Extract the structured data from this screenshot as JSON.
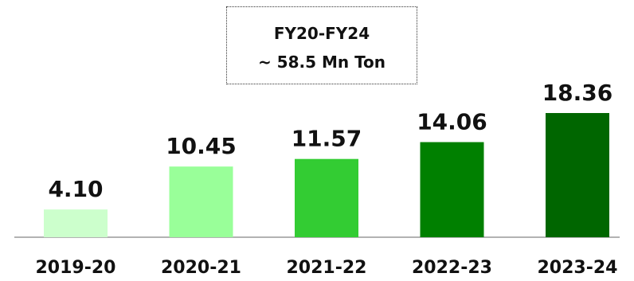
{
  "chart_data": {
    "type": "bar",
    "title": "",
    "xlabel": "",
    "ylabel": "",
    "categories": [
      "2019-20",
      "2020-21",
      "2021-22",
      "2022-23",
      "2023-24"
    ],
    "values": [
      4.1,
      10.45,
      11.57,
      14.06,
      18.36
    ],
    "data_labels": [
      "4.10",
      "10.45",
      "11.57",
      "14.06",
      "18.36"
    ],
    "bar_colors": [
      "#ccffcc",
      "#99ff99",
      "#33cc33",
      "#008000",
      "#006600"
    ],
    "ylim": [
      0,
      20
    ],
    "grid": false,
    "legend": "none",
    "annotation": {
      "line1": "FY20-FY24",
      "line2": "~ 58.5 Mn Ton"
    }
  }
}
